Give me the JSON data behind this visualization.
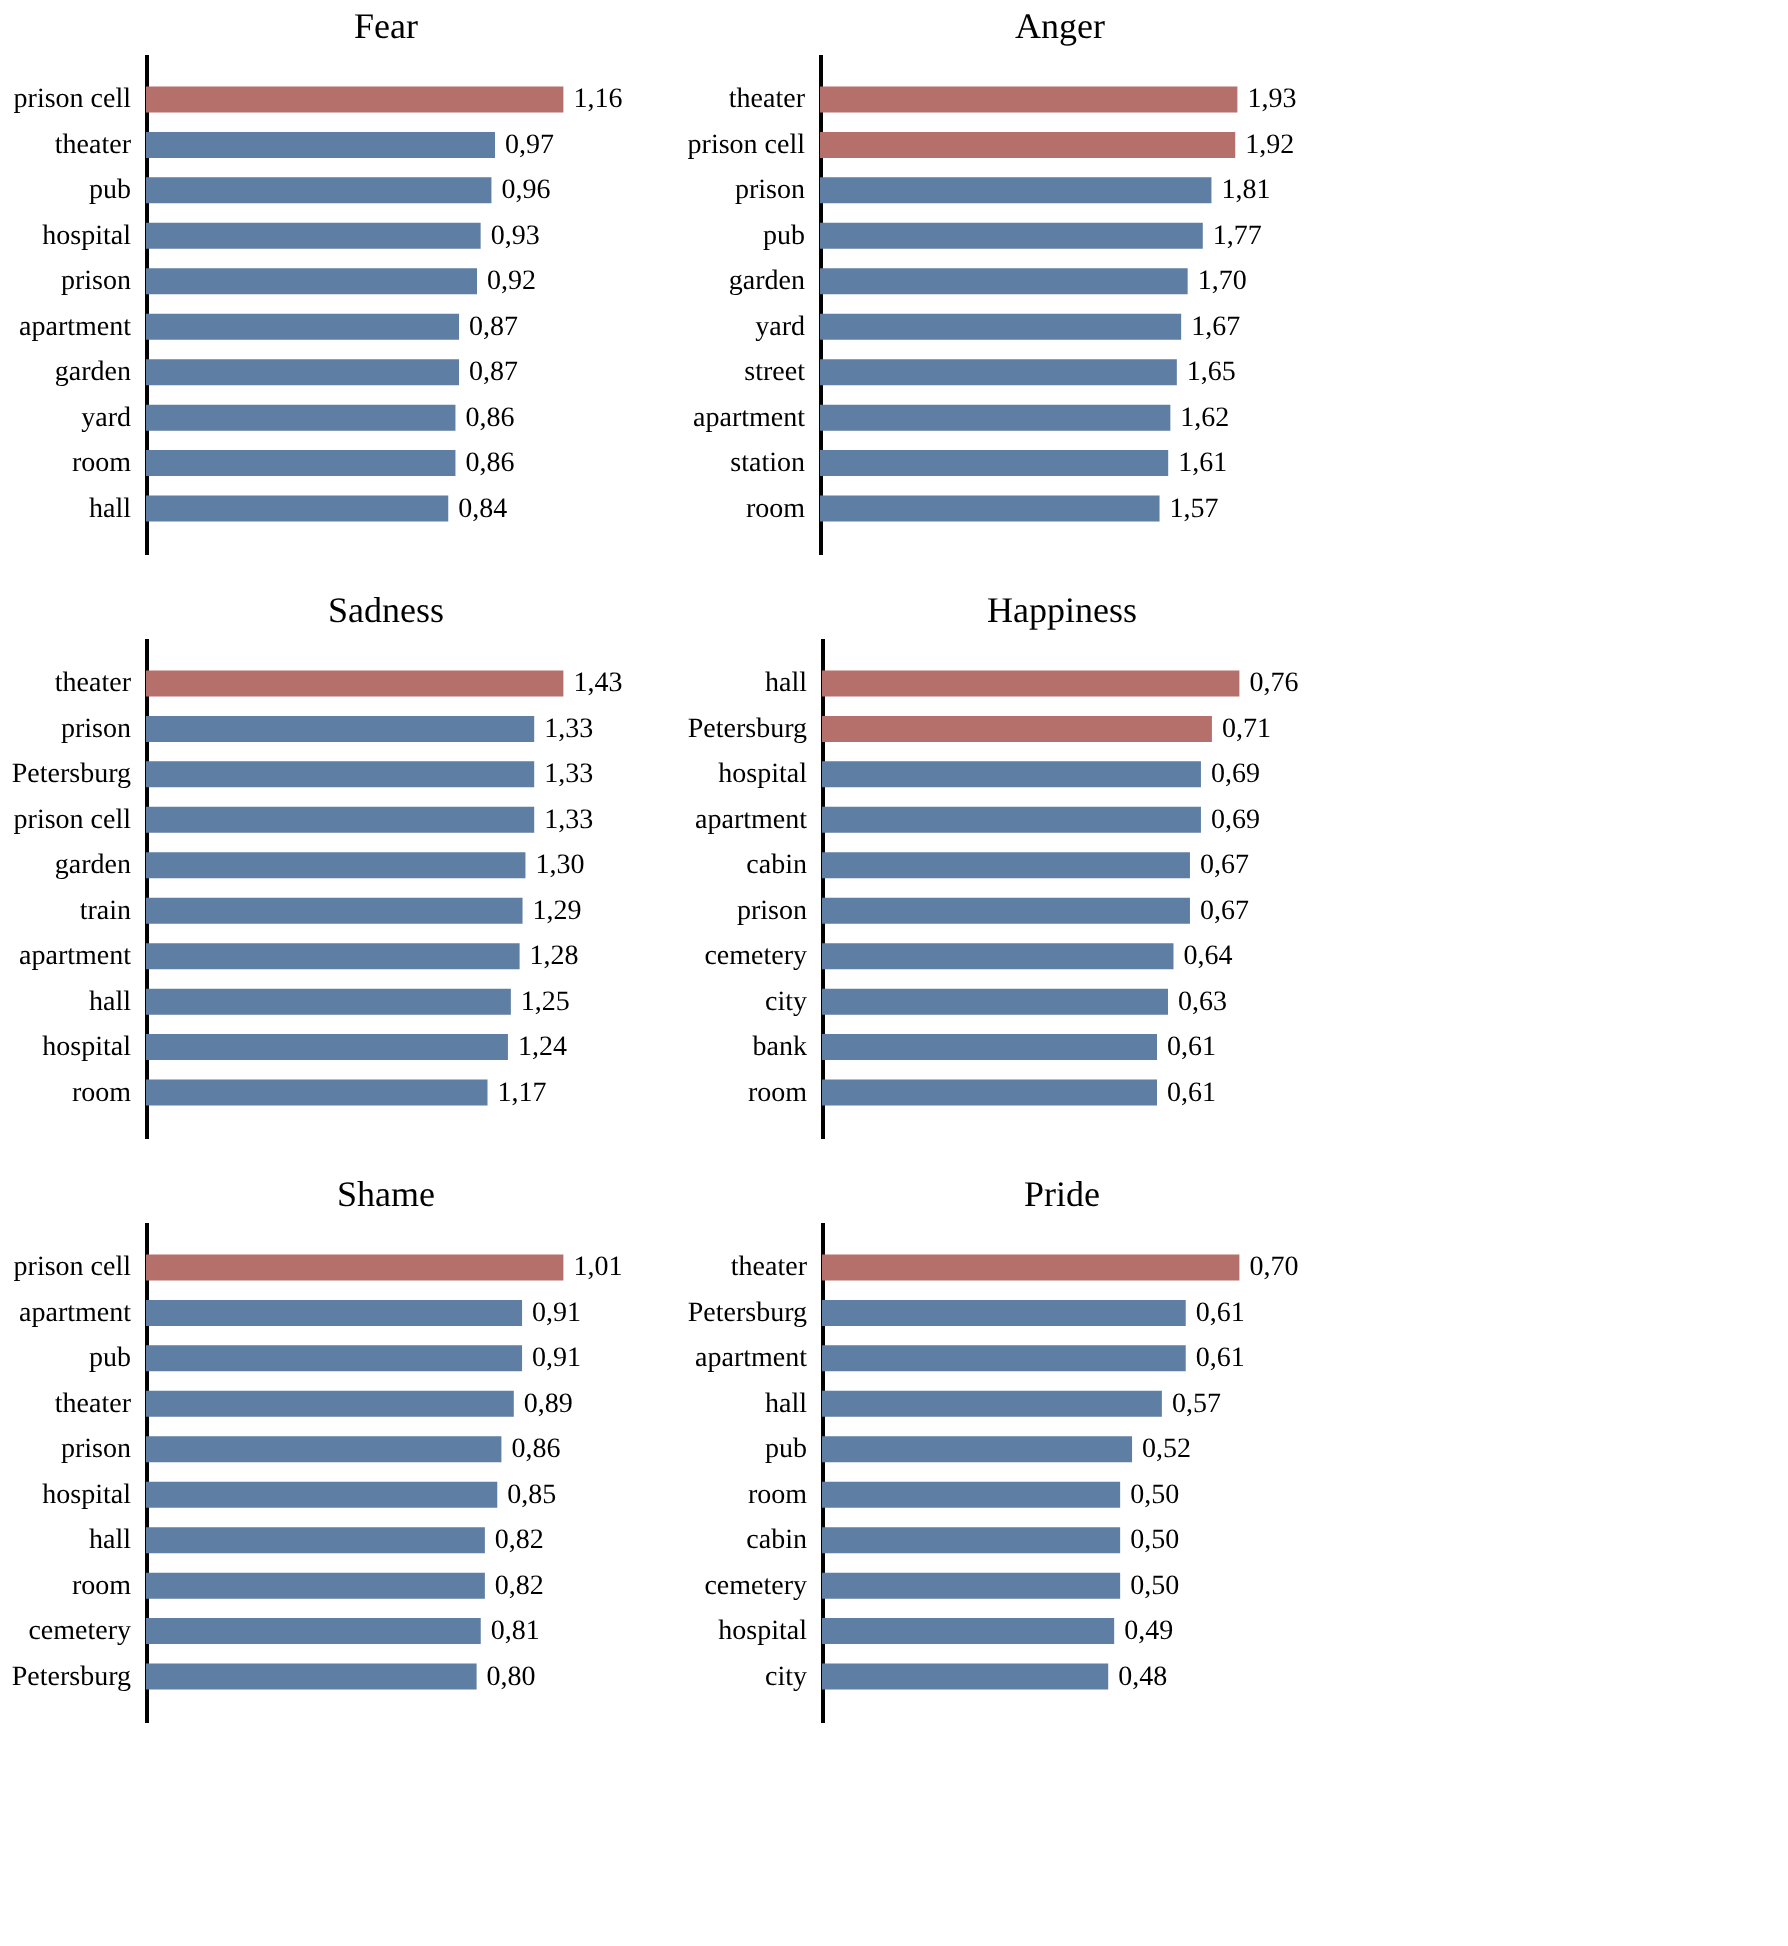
{
  "chart_data": [
    {
      "type": "bar",
      "orientation": "horizontal",
      "title": "Fear",
      "categories": [
        "prison cell",
        "theater",
        "pub",
        "hospital",
        "prison",
        "apartment",
        "garden",
        "yard",
        "room",
        "hall"
      ],
      "values": [
        1.16,
        0.97,
        0.96,
        0.93,
        0.92,
        0.87,
        0.87,
        0.86,
        0.86,
        0.84
      ],
      "value_labels": [
        "1,16",
        "0,97",
        "0,96",
        "0,93",
        "0,92",
        "0,87",
        "0,87",
        "0,86",
        "0,86",
        "0,84"
      ],
      "colors": [
        "#b5706c",
        "#5e7ea3",
        "#5e7ea3",
        "#5e7ea3",
        "#5e7ea3",
        "#5e7ea3",
        "#5e7ea3",
        "#5e7ea3",
        "#5e7ea3",
        "#5e7ea3"
      ],
      "tick_labels": "y",
      "grid": false,
      "legend": false
    },
    {
      "type": "bar",
      "orientation": "horizontal",
      "title": "Anger",
      "categories": [
        "theater",
        "prison cell",
        "prison",
        "pub",
        "garden",
        "yard",
        "street",
        "apartment",
        "station",
        "room"
      ],
      "values": [
        1.93,
        1.92,
        1.81,
        1.77,
        1.7,
        1.67,
        1.65,
        1.62,
        1.61,
        1.57
      ],
      "value_labels": [
        "1,93",
        "1,92",
        "1,81",
        "1,77",
        "1,70",
        "1,67",
        "1,65",
        "1,62",
        "1,61",
        "1,57"
      ],
      "colors": [
        "#b5706c",
        "#b5706c",
        "#5e7ea3",
        "#5e7ea3",
        "#5e7ea3",
        "#5e7ea3",
        "#5e7ea3",
        "#5e7ea3",
        "#5e7ea3",
        "#5e7ea3"
      ],
      "tick_labels": "y",
      "grid": false,
      "legend": false
    },
    {
      "type": "bar",
      "orientation": "horizontal",
      "title": "Sadness",
      "categories": [
        "theater",
        "prison",
        "Petersburg",
        "prison cell",
        "garden",
        "train",
        "apartment",
        "hall",
        "hospital",
        "room"
      ],
      "values": [
        1.43,
        1.33,
        1.33,
        1.33,
        1.3,
        1.29,
        1.28,
        1.25,
        1.24,
        1.17
      ],
      "value_labels": [
        "1,43",
        "1,33",
        "1,33",
        "1,33",
        "1,30",
        "1,29",
        "1,28",
        "1,25",
        "1,24",
        "1,17"
      ],
      "colors": [
        "#b5706c",
        "#5e7ea3",
        "#5e7ea3",
        "#5e7ea3",
        "#5e7ea3",
        "#5e7ea3",
        "#5e7ea3",
        "#5e7ea3",
        "#5e7ea3",
        "#5e7ea3"
      ],
      "tick_labels": "y",
      "grid": false,
      "legend": false
    },
    {
      "type": "bar",
      "orientation": "horizontal",
      "title": "Happiness",
      "categories": [
        "hall",
        "Petersburg",
        "hospital",
        "apartment",
        "cabin",
        "prison",
        "cemetery",
        "city",
        "bank",
        "room"
      ],
      "values": [
        0.76,
        0.71,
        0.69,
        0.69,
        0.67,
        0.67,
        0.64,
        0.63,
        0.61,
        0.61
      ],
      "value_labels": [
        "0,76",
        "0,71",
        "0,69",
        "0,69",
        "0,67",
        "0,67",
        "0,64",
        "0,63",
        "0,61",
        "0,61"
      ],
      "colors": [
        "#b5706c",
        "#b5706c",
        "#5e7ea3",
        "#5e7ea3",
        "#5e7ea3",
        "#5e7ea3",
        "#5e7ea3",
        "#5e7ea3",
        "#5e7ea3",
        "#5e7ea3"
      ],
      "tick_labels": "y",
      "grid": false,
      "legend": false
    },
    {
      "type": "bar",
      "orientation": "horizontal",
      "title": "Shame",
      "categories": [
        "prison cell",
        "apartment",
        "pub",
        "theater",
        "prison",
        "hospital",
        "hall",
        "room",
        "cemetery",
        "Petersburg"
      ],
      "values": [
        1.01,
        0.91,
        0.91,
        0.89,
        0.86,
        0.85,
        0.82,
        0.82,
        0.81,
        0.8
      ],
      "value_labels": [
        "1,01",
        "0,91",
        "0,91",
        "0,89",
        "0,86",
        "0,85",
        "0,82",
        "0,82",
        "0,81",
        "0,80"
      ],
      "colors": [
        "#b5706c",
        "#5e7ea3",
        "#5e7ea3",
        "#5e7ea3",
        "#5e7ea3",
        "#5e7ea3",
        "#5e7ea3",
        "#5e7ea3",
        "#5e7ea3",
        "#5e7ea3"
      ],
      "tick_labels": "y",
      "grid": false,
      "legend": false
    },
    {
      "type": "bar",
      "orientation": "horizontal",
      "title": "Pride",
      "categories": [
        "theater",
        "Petersburg",
        "apartment",
        "hall",
        "pub",
        "room",
        "cabin",
        "cemetery",
        "hospital",
        "city"
      ],
      "values": [
        0.7,
        0.61,
        0.61,
        0.57,
        0.52,
        0.5,
        0.5,
        0.5,
        0.49,
        0.48
      ],
      "value_labels": [
        "0,70",
        "0,61",
        "0,61",
        "0,57",
        "0,52",
        "0,50",
        "0,50",
        "0,50",
        "0,49",
        "0,48"
      ],
      "colors": [
        "#b5706c",
        "#5e7ea3",
        "#5e7ea3",
        "#5e7ea3",
        "#5e7ea3",
        "#5e7ea3",
        "#5e7ea3",
        "#5e7ea3",
        "#5e7ea3",
        "#5e7ea3"
      ],
      "tick_labels": "y",
      "grid": false,
      "legend": false
    }
  ]
}
